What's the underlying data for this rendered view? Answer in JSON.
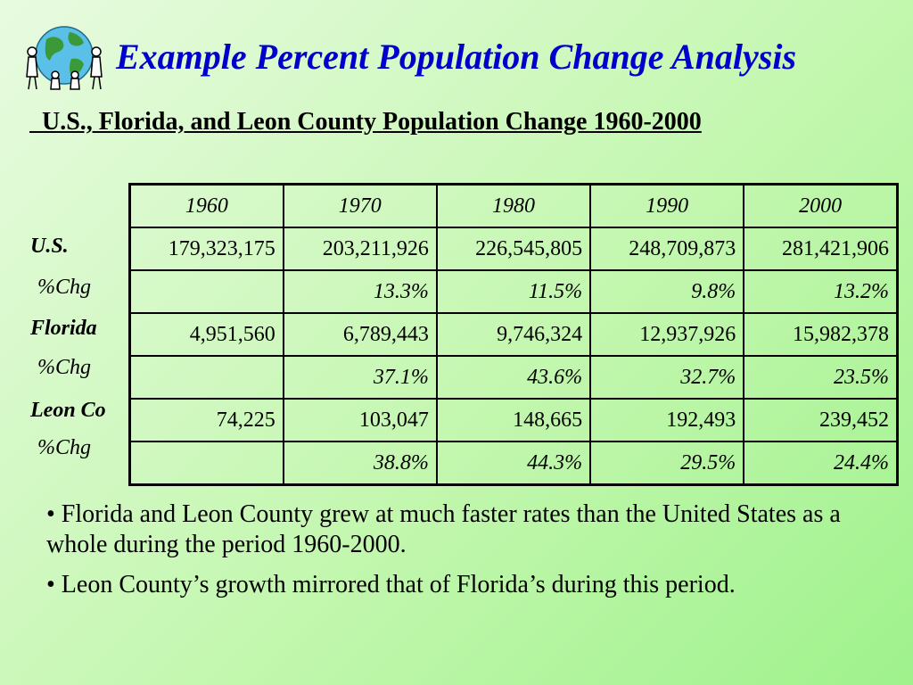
{
  "title": "Example Percent Population Change Analysis",
  "subtitle": "  U.S., Florida, and Leon County Population Change 1960-2000",
  "table": {
    "years": [
      "1960",
      "1970",
      "1980",
      "1990",
      "2000"
    ],
    "rows": [
      {
        "label": "U.S.",
        "type": "value",
        "cells": [
          "179,323,175",
          "203,211,926",
          "226,545,805",
          "248,709,873",
          "281,421,906"
        ]
      },
      {
        "label": "%Chg",
        "type": "pct",
        "cells": [
          "",
          "13.3%",
          "11.5%",
          "9.8%",
          "13.2%"
        ]
      },
      {
        "label": "Florida",
        "type": "value",
        "cells": [
          "4,951,560",
          "6,789,443",
          "9,746,324",
          "12,937,926",
          "15,982,378"
        ]
      },
      {
        "label": "%Chg",
        "type": "pct",
        "cells": [
          "",
          "37.1%",
          "43.6%",
          "32.7%",
          "23.5%"
        ]
      },
      {
        "label": "Leon Co",
        "type": "value",
        "cells": [
          "74,225",
          "103,047",
          "148,665",
          "192,493",
          "239,452"
        ]
      },
      {
        "label": "%Chg",
        "type": "pct",
        "cells": [
          "",
          "38.8%",
          "44.3%",
          "29.5%",
          "24.4%"
        ]
      }
    ]
  },
  "bullets": [
    "• Florida and Leon County grew at much faster rates than the United States as a whole during the period 1960-2000.",
    "• Leon County’s growth mirrored that of Florida’s during this period."
  ],
  "colors": {
    "title": "#0000cc",
    "background": "#c4f7b0"
  },
  "logo_icon": "globe-with-people-icon"
}
